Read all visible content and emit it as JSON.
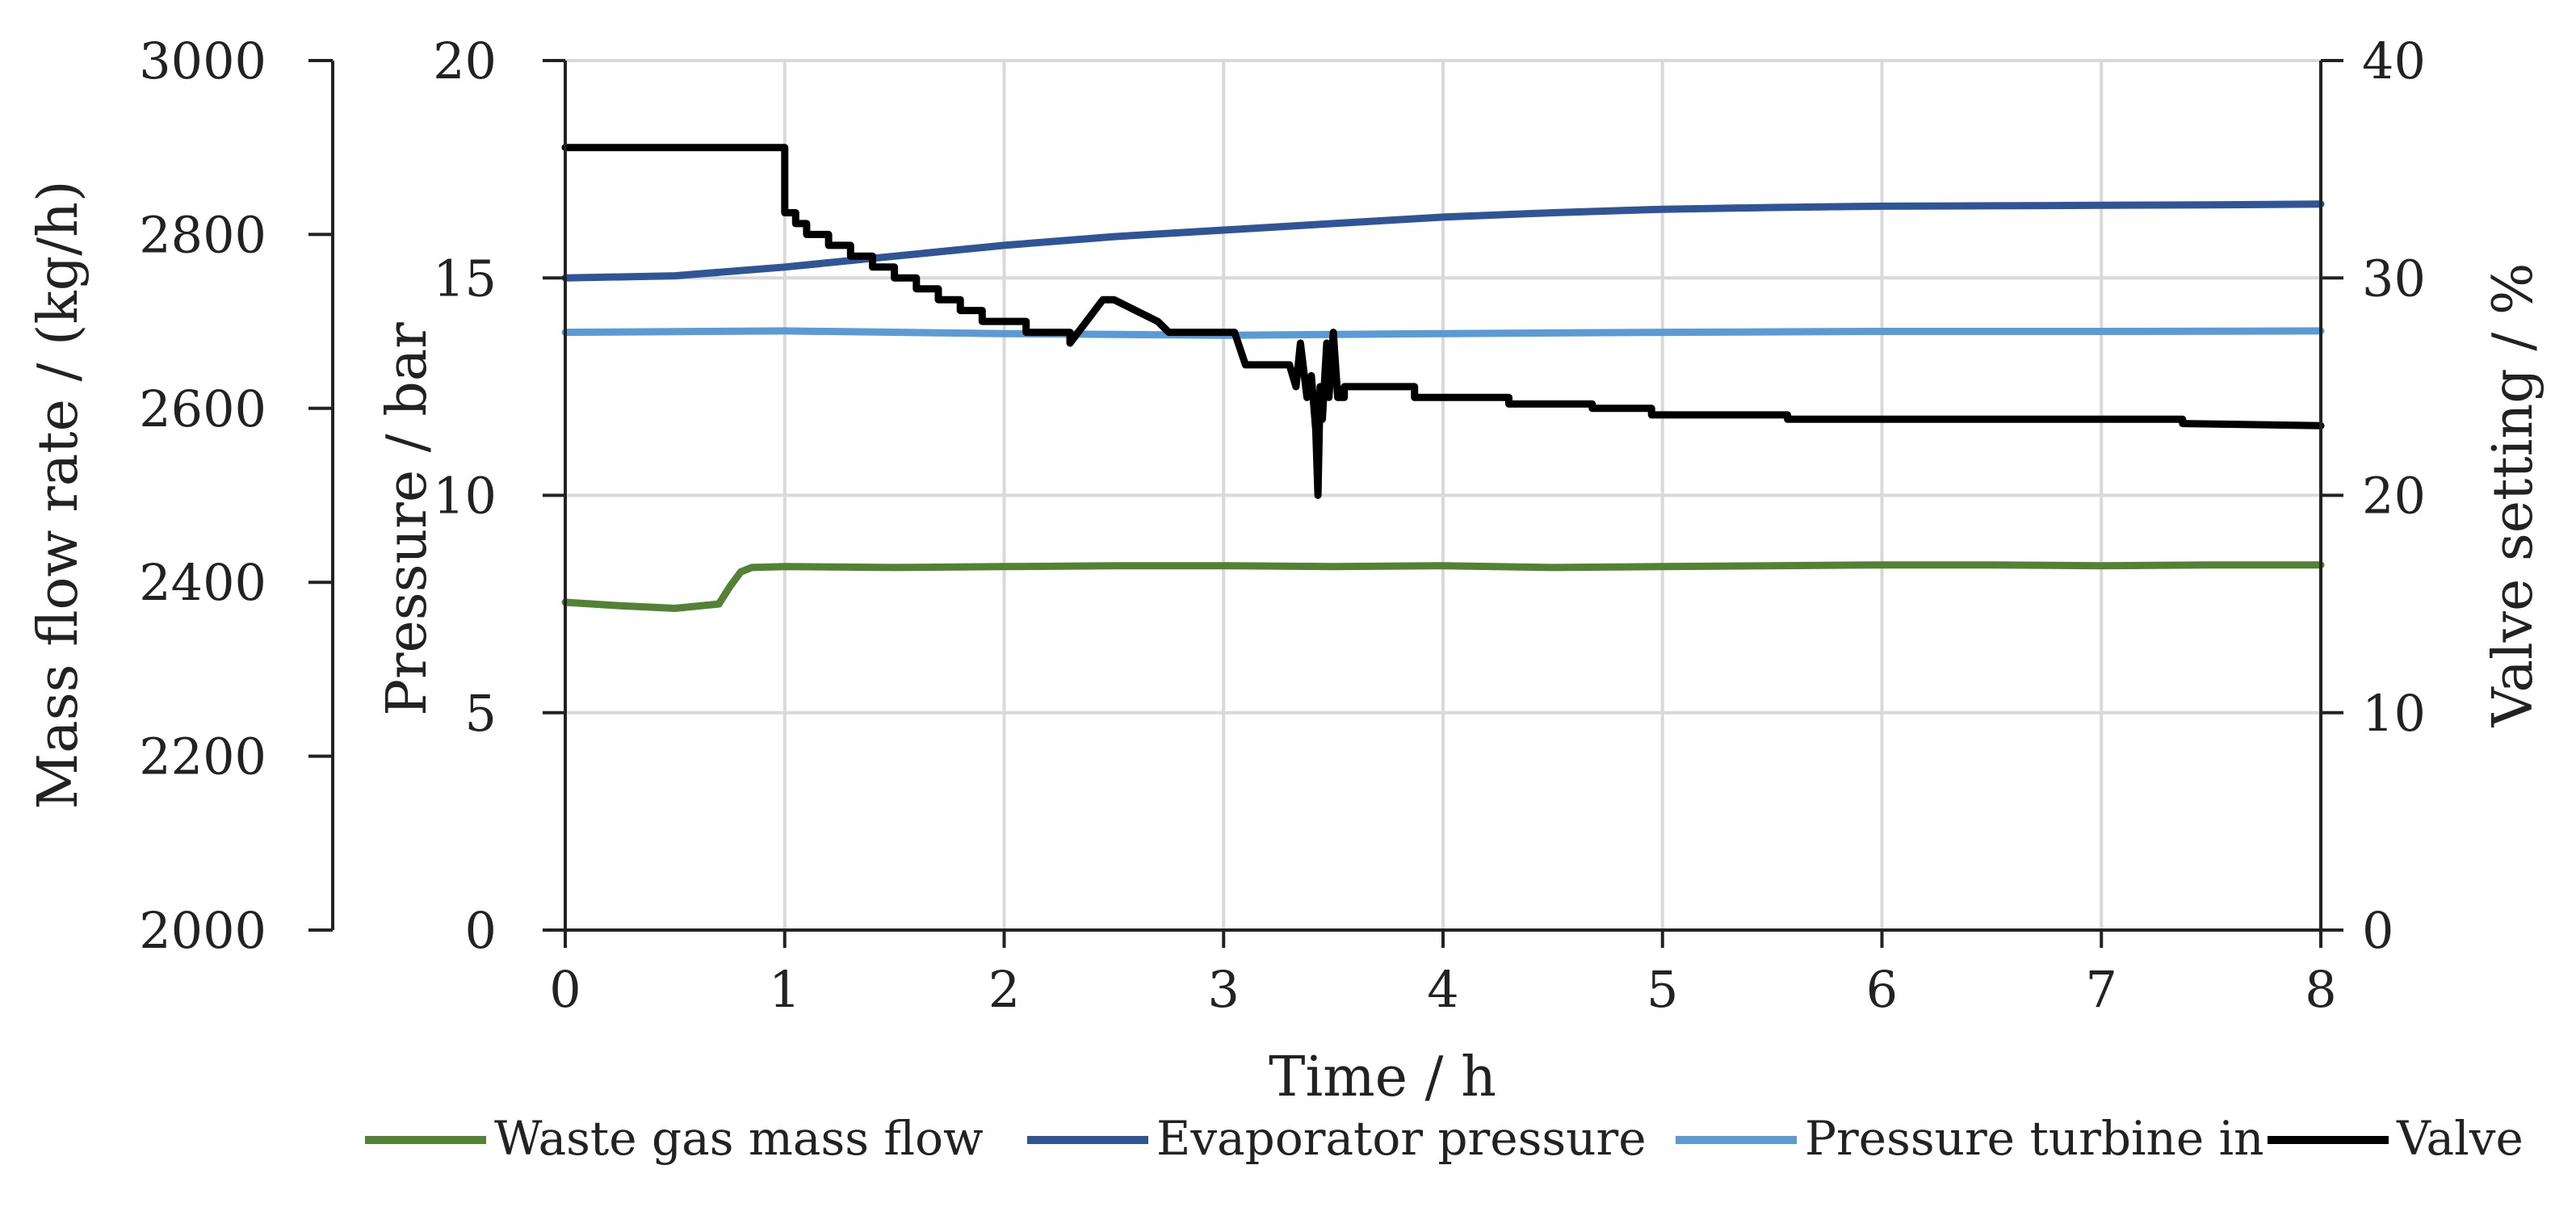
{
  "chart_data": {
    "type": "line",
    "title": "",
    "xlabel": "Time / h",
    "ylabel_left_outer": "Mass flow rate / (kg/h)",
    "ylabel_left_inner": "Pressure / bar",
    "ylabel_right": "Valve setting / %",
    "xlim": [
      0,
      8
    ],
    "xticks": [
      "0",
      "1",
      "2",
      "3",
      "4",
      "5",
      "6",
      "7",
      "8"
    ],
    "ylim_massflow": [
      2000,
      3000
    ],
    "yticks_massflow": [
      "2000",
      "2200",
      "2400",
      "2600",
      "2800",
      "3000"
    ],
    "ylim_pressure": [
      0,
      20
    ],
    "yticks_pressure": [
      "0",
      "5",
      "10",
      "15",
      "20"
    ],
    "ylim_valve": [
      0,
      40
    ],
    "yticks_valve": [
      "0",
      "10",
      "20",
      "30",
      "40"
    ],
    "grid": "vertical",
    "legend_position": "bottom",
    "series": [
      {
        "name": "Waste gas mass flow",
        "axis": "massflow",
        "color": "#548235",
        "x": [
          0,
          0.25,
          0.5,
          0.7,
          0.75,
          0.8,
          0.85,
          1.0,
          1.5,
          2.0,
          2.5,
          3.0,
          3.5,
          4.0,
          4.5,
          5.0,
          5.5,
          6.0,
          6.5,
          7.0,
          7.5,
          8.0
        ],
        "values": [
          2377,
          2373,
          2370,
          2375,
          2395,
          2412,
          2417,
          2418,
          2417,
          2418,
          2419,
          2419,
          2418,
          2419,
          2417,
          2418,
          2419,
          2420,
          2420,
          2419,
          2420,
          2420
        ]
      },
      {
        "name": "Evaporator pressure",
        "axis": "pressure",
        "color": "#2F5597",
        "x": [
          0,
          0.5,
          1.0,
          1.5,
          2.0,
          2.5,
          3.0,
          3.5,
          4.0,
          4.5,
          5.0,
          5.5,
          6.0,
          6.5,
          7.0,
          7.5,
          8.0
        ],
        "values": [
          15.0,
          15.05,
          15.25,
          15.5,
          15.75,
          15.95,
          16.1,
          16.25,
          16.4,
          16.5,
          16.58,
          16.62,
          16.65,
          16.66,
          16.67,
          16.68,
          16.7
        ]
      },
      {
        "name": "Pressure turbine in",
        "axis": "pressure",
        "color": "#5B9BD5",
        "x": [
          0,
          1.0,
          2.0,
          3.0,
          4.0,
          5.0,
          6.0,
          7.0,
          8.0
        ],
        "values": [
          13.75,
          13.78,
          13.72,
          13.68,
          13.72,
          13.75,
          13.77,
          13.77,
          13.78
        ]
      },
      {
        "name": "Valve",
        "axis": "valve",
        "color": "#000000",
        "x": [
          0,
          1.0,
          1.0,
          1.05,
          1.05,
          1.1,
          1.1,
          1.2,
          1.2,
          1.3,
          1.3,
          1.4,
          1.4,
          1.5,
          1.5,
          1.6,
          1.6,
          1.7,
          1.7,
          1.8,
          1.8,
          1.9,
          1.9,
          2.1,
          2.1,
          2.3,
          2.3,
          2.45,
          2.5,
          2.7,
          2.75,
          2.8,
          3.05,
          3.1,
          3.3,
          3.33,
          3.35,
          3.38,
          3.4,
          3.42,
          3.43,
          3.44,
          3.45,
          3.47,
          3.48,
          3.5,
          3.52,
          3.55,
          3.55,
          3.87,
          3.87,
          4.3,
          4.3,
          4.68,
          4.68,
          4.95,
          4.95,
          5.57,
          5.57,
          7.37,
          7.37,
          8.0
        ],
        "values": [
          36,
          36,
          33,
          33,
          32.5,
          32.5,
          32,
          32,
          31.5,
          31.5,
          31,
          31,
          30.5,
          30.5,
          30,
          30,
          29.5,
          29.5,
          29,
          29,
          28.5,
          28.5,
          28,
          28,
          27.5,
          27.5,
          27,
          29,
          29,
          28,
          27.5,
          27.5,
          27.5,
          26,
          26,
          25,
          27,
          24.5,
          25.5,
          23,
          20,
          25,
          23.5,
          27,
          24.5,
          27.5,
          24.5,
          24.5,
          25,
          25,
          24.5,
          24.5,
          24.2,
          24.2,
          24,
          24,
          23.7,
          23.7,
          23.5,
          23.5,
          23.3,
          23.2
        ]
      }
    ]
  }
}
